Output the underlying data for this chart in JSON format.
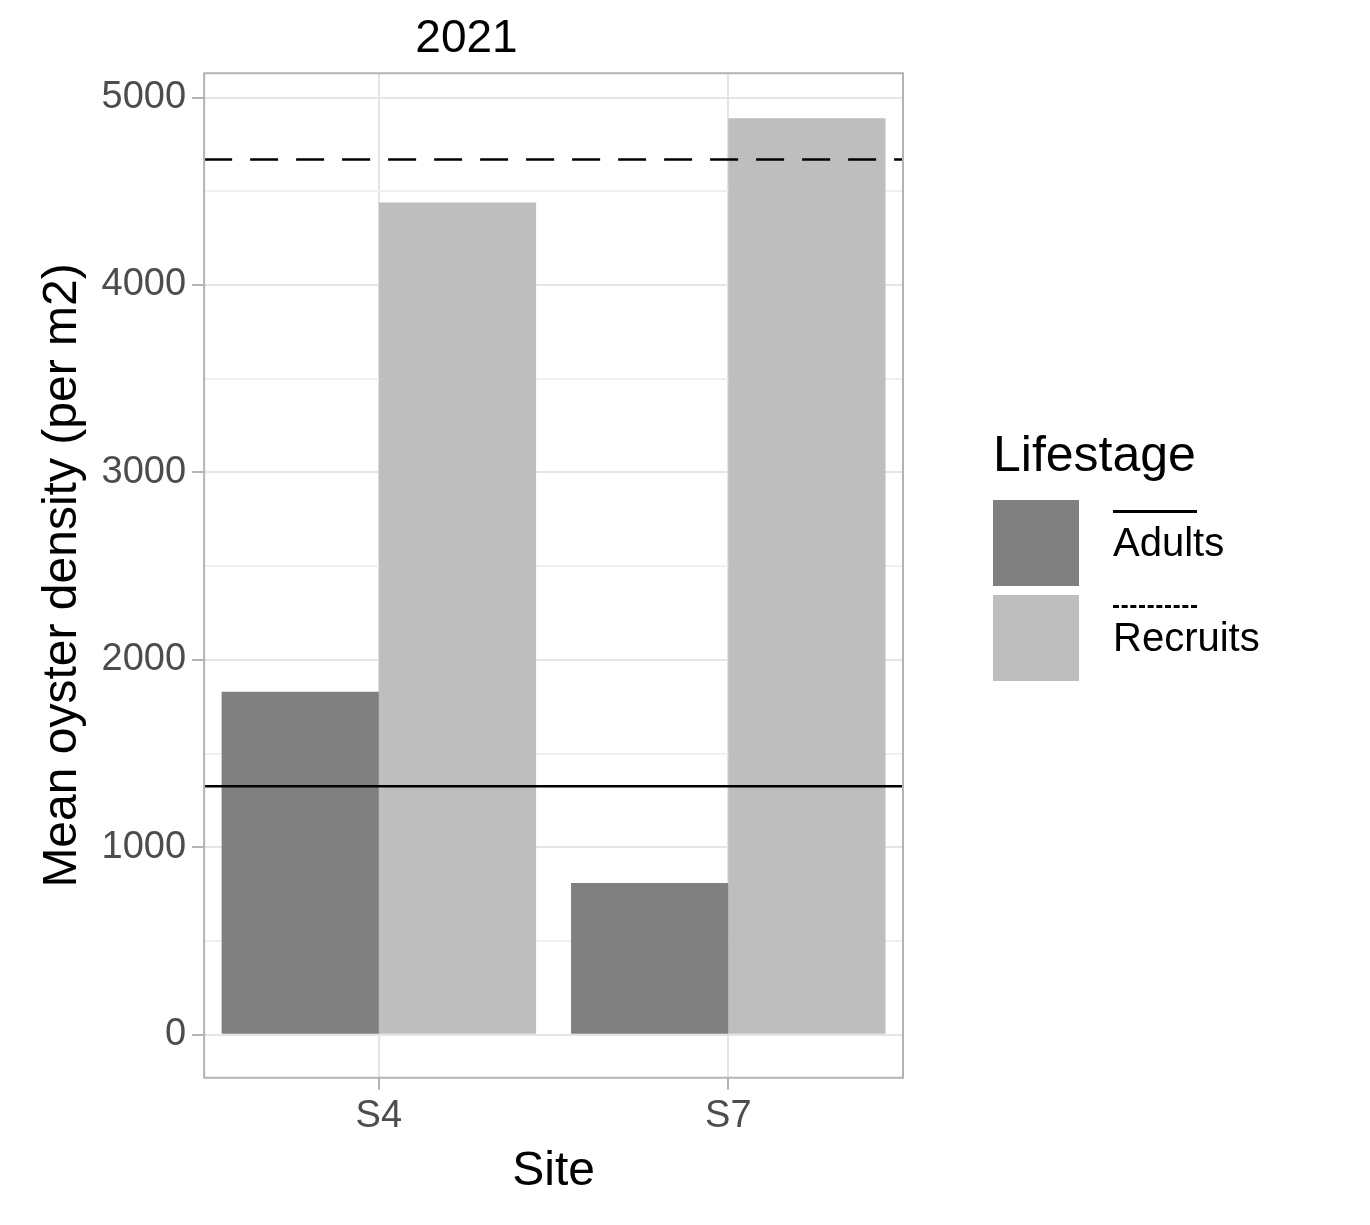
{
  "chart_data": {
    "type": "bar",
    "title": "2021",
    "xlabel": "Site",
    "ylabel": "Mean oyster density (per m2)",
    "legend_title": "Lifestage",
    "legend": "right",
    "grid": true,
    "categories": [
      "S4",
      "S7"
    ],
    "series": [
      {
        "name": "Adults",
        "color": "#808080",
        "values": [
          1830,
          810
        ]
      },
      {
        "name": "Recruits",
        "color": "#bebebe",
        "values": [
          4440,
          4890
        ]
      }
    ],
    "ylim": [
      -230,
      5130
    ],
    "yticks": [
      0,
      {
        "value": 500,
        "label": null
      },
      1000,
      {
        "value": 1500,
        "label": null
      },
      2000,
      {
        "value": 2500,
        "label": null
      },
      3000,
      {
        "value": 3500,
        "label": null
      },
      4000,
      {
        "value": 4500,
        "label": null
      },
      5000
    ],
    "ref_lines": [
      {
        "axis": "y",
        "value": 1325,
        "color": "#000000",
        "line_style": "solid"
      },
      {
        "axis": "y",
        "value": 4670,
        "color": "#000000",
        "line_style": "dashed"
      }
    ]
  }
}
